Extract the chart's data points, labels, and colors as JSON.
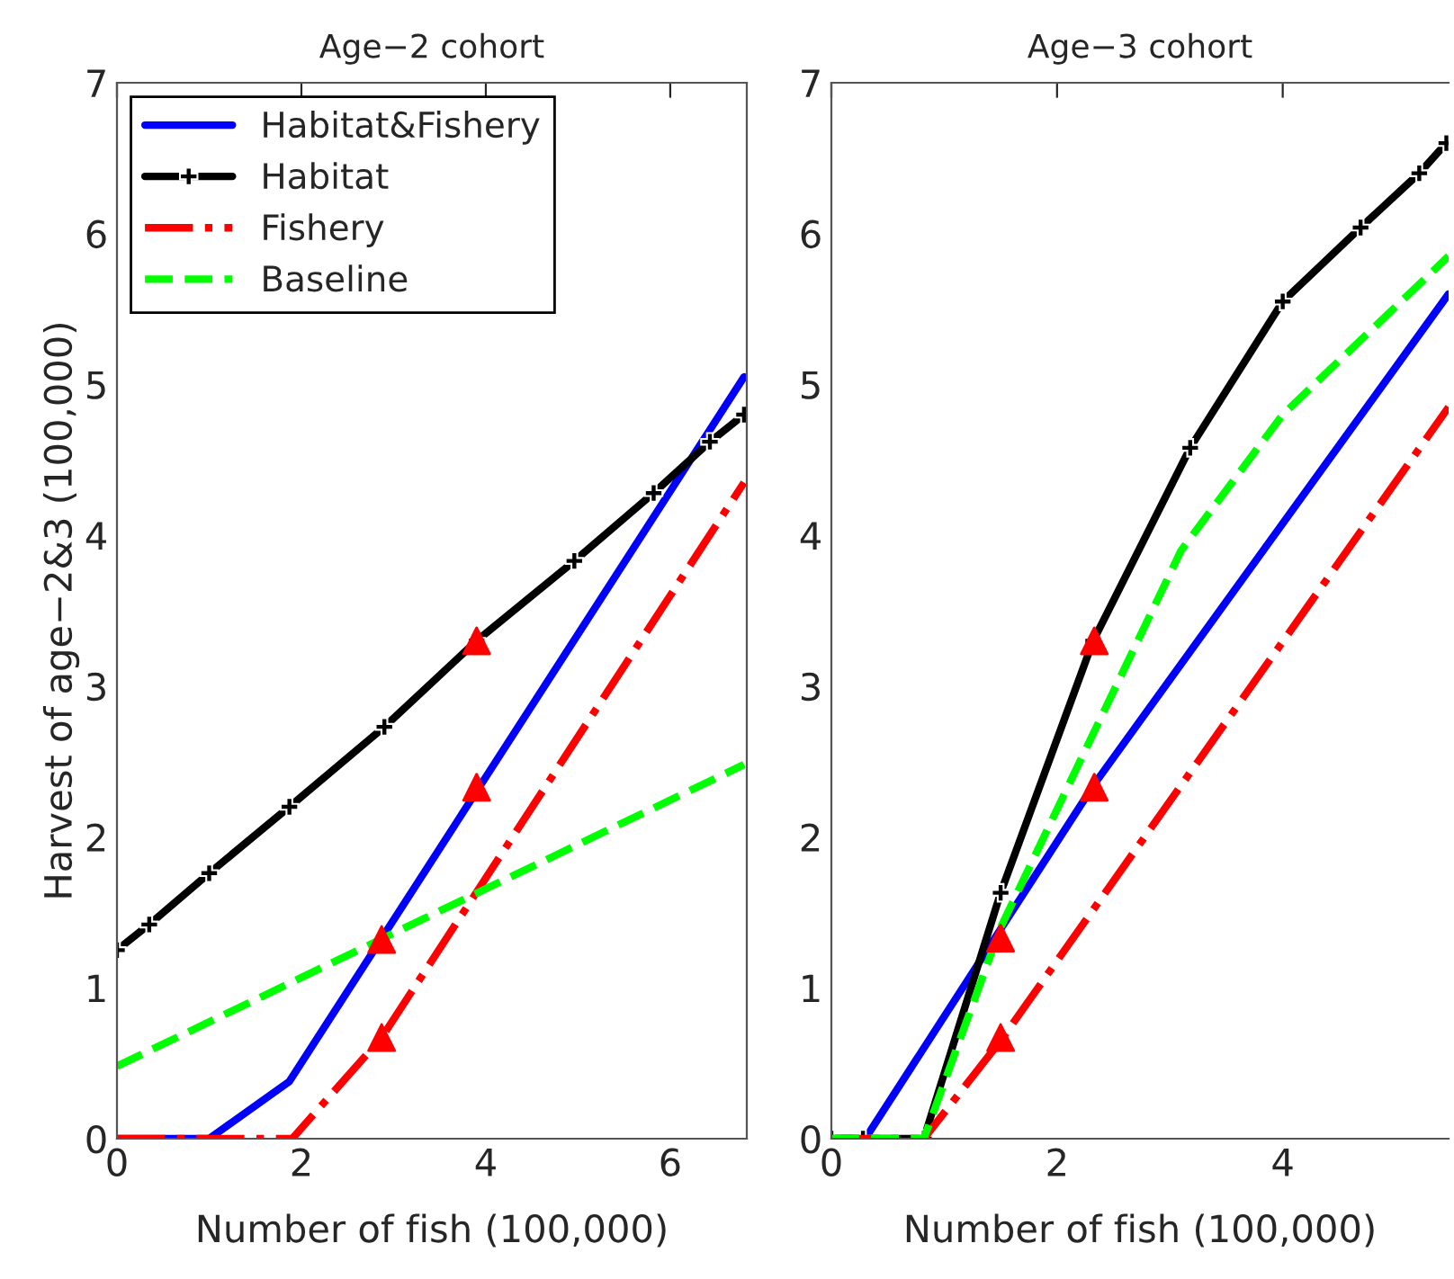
{
  "chart_data": [
    {
      "type": "line",
      "title": "Age−2 cohort",
      "xlabel": "Number of fish (100,000)",
      "ylabel": "Harvest of age−2&3 (100,000)",
      "xlim": [
        0,
        6.83
      ],
      "xticks": [
        0,
        2,
        4,
        6
      ],
      "ylim": [
        0,
        7
      ],
      "yticks": [
        0,
        1,
        2,
        3,
        4,
        5,
        6,
        7
      ],
      "grid": false,
      "legend": "top left",
      "series": [
        {
          "name": "Habitat&Fishery",
          "color": "#0000ff",
          "line_style": "solid",
          "marker": "none",
          "x": [
            0,
            1.0,
            1.87,
            6.8
          ],
          "values": [
            0,
            0,
            0.38,
            5.05
          ]
        },
        {
          "name": "Habitat",
          "color": "#000000",
          "line_style": "solid",
          "marker": "cross",
          "x": [
            0,
            0.35,
            1.0,
            1.87,
            2.9,
            3.9,
            4.96,
            5.82,
            6.43,
            6.8
          ],
          "values": [
            1.25,
            1.42,
            1.76,
            2.2,
            2.73,
            3.3,
            3.83,
            4.28,
            4.62,
            4.8
          ]
        },
        {
          "name": "Fishery",
          "color": "#ff0000",
          "line_style": "dashdot",
          "marker": "none",
          "x": [
            0,
            1.9,
            2.87,
            6.8
          ],
          "values": [
            0,
            0,
            0.67,
            4.35
          ]
        },
        {
          "name": "Baseline",
          "color": "#00ff00",
          "line_style": "dashed",
          "marker": "none",
          "x": [
            0,
            6.8
          ],
          "values": [
            0.48,
            2.48
          ]
        },
        {
          "type": "scatter",
          "color": "#ff0000",
          "marker": "triangle",
          "x": [
            2.87,
            3.9,
            2.87,
            3.9
          ],
          "values": [
            1.32,
            2.33,
            0.67,
            3.3
          ]
        }
      ]
    },
    {
      "type": "line",
      "title": "Age−3 cohort",
      "xlabel": "Number of fish (100,000)",
      "xlim": [
        0,
        5.47
      ],
      "xticks": [
        0,
        2,
        4
      ],
      "ylim": [
        0,
        7
      ],
      "yticks": [
        0,
        1,
        2,
        3,
        4,
        5,
        6,
        7
      ],
      "grid": false,
      "series": [
        {
          "color": "#0000ff",
          "line_style": "solid",
          "marker": "none",
          "x": [
            0,
            0.3,
            2.33,
            5.47
          ],
          "values": [
            0,
            0,
            2.35,
            5.6
          ]
        },
        {
          "color": "#000000",
          "line_style": "solid",
          "marker": "cross",
          "x": [
            0,
            0.28,
            0.82,
            1.5,
            2.32,
            3.18,
            4.0,
            4.69,
            5.21,
            5.45
          ],
          "values": [
            0,
            0,
            0,
            1.63,
            3.3,
            4.58,
            5.55,
            6.04,
            6.4,
            6.6
          ]
        },
        {
          "color": "#ff0000",
          "line_style": "dashdot",
          "marker": "none",
          "x": [
            0,
            0.82,
            1.5,
            5.47
          ],
          "values": [
            0,
            0,
            0.65,
            4.85
          ]
        },
        {
          "color": "#00ff00",
          "line_style": "dashed",
          "marker": "none",
          "x": [
            0,
            0.82,
            1.5,
            2.33,
            3.1,
            4.0,
            5.47
          ],
          "values": [
            0,
            0,
            1.4,
            2.7,
            3.9,
            4.8,
            5.85
          ]
        },
        {
          "type": "scatter",
          "color": "#ff0000",
          "marker": "triangle",
          "x": [
            1.5,
            1.5,
            2.33,
            2.33
          ],
          "values": [
            1.33,
            0.67,
            3.3,
            2.33
          ]
        }
      ]
    }
  ]
}
